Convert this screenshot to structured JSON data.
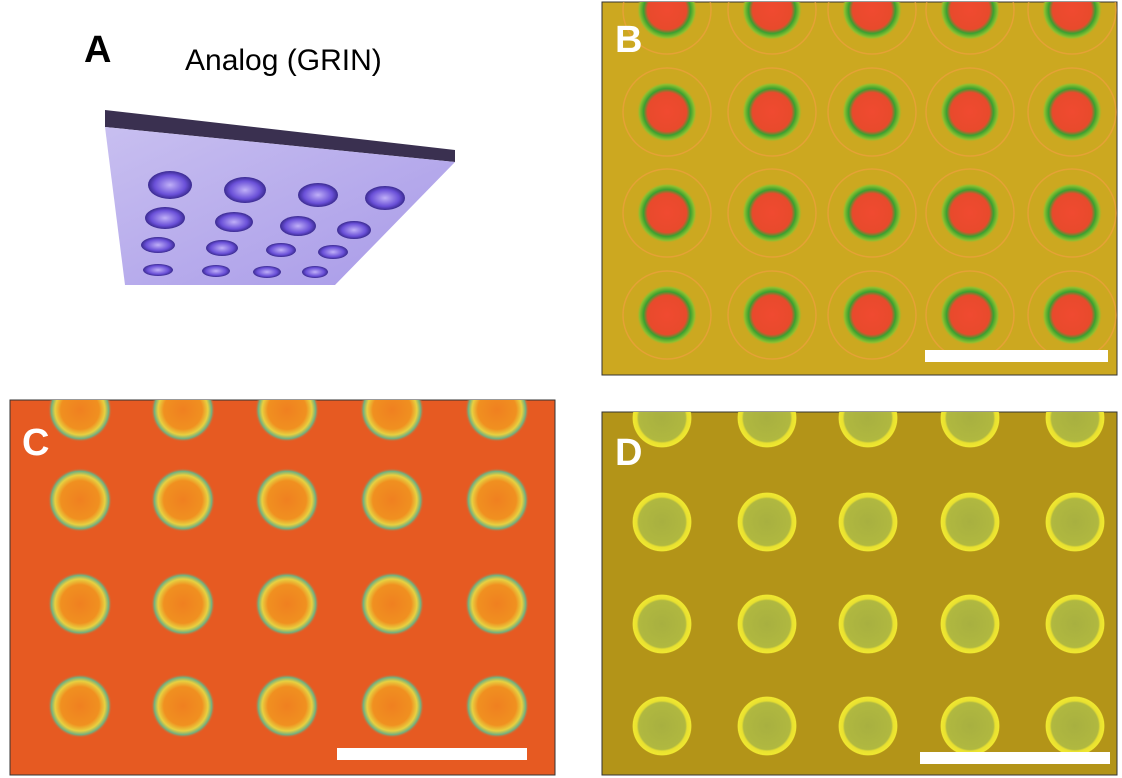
{
  "panels": {
    "a": {
      "label": "A",
      "title": "Analog (GRIN)"
    },
    "b": {
      "label": "B"
    },
    "c": {
      "label": "C"
    },
    "d": {
      "label": "D"
    }
  }
}
